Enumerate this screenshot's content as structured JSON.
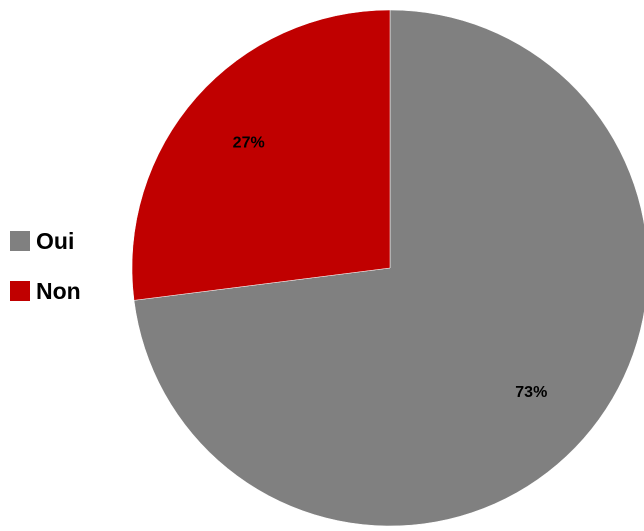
{
  "chart_data": {
    "type": "pie",
    "categories": [
      "Oui",
      "Non"
    ],
    "values": [
      73,
      27
    ],
    "value_labels": [
      "73%",
      "27%"
    ],
    "colors": [
      "#808080",
      "#c00000"
    ],
    "start_angle_deg": 0,
    "direction": "clockwise",
    "legend_position": "left",
    "title": "",
    "grid": false
  }
}
